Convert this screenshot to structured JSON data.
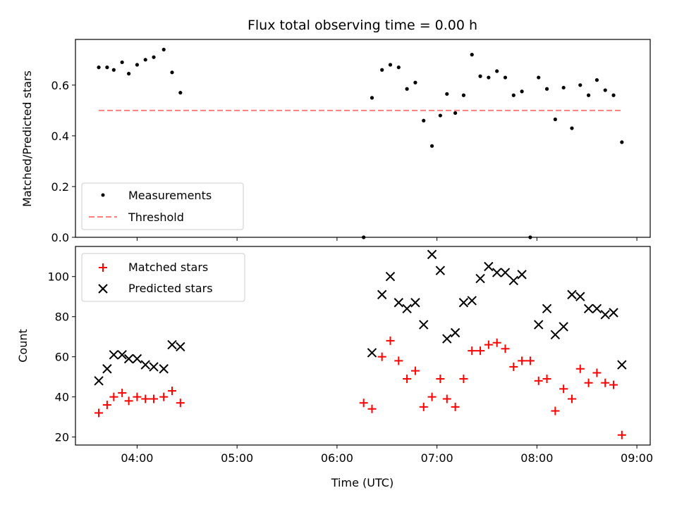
{
  "chart_data": [
    {
      "type": "scatter",
      "title": "Flux total observing time = 0.00 h",
      "ylabel": "Matched/Predicted stars",
      "xlabel": "",
      "xlim": [
        "03:23",
        "09:08"
      ],
      "ylim": [
        0,
        0.78
      ],
      "yticks": [
        "0.0",
        "0.2",
        "0.4",
        "0.6"
      ],
      "ytick_values": [
        0.0,
        0.2,
        0.4,
        0.6
      ],
      "grid": false,
      "legend": "lower-left",
      "series": [
        {
          "name": "Measurements",
          "marker": "dot",
          "color": "#000000",
          "points": [
            [
              "03:37",
              0.67
            ],
            [
              "03:42",
              0.67
            ],
            [
              "03:46",
              0.66
            ],
            [
              "03:51",
              0.69
            ],
            [
              "03:55",
              0.645
            ],
            [
              "04:00",
              0.68
            ],
            [
              "04:05",
              0.7
            ],
            [
              "04:10",
              0.71
            ],
            [
              "04:16",
              0.74
            ],
            [
              "04:21",
              0.65
            ],
            [
              "04:26",
              0.57
            ],
            [
              "06:16",
              0.0
            ],
            [
              "06:21",
              0.55
            ],
            [
              "06:27",
              0.66
            ],
            [
              "06:32",
              0.68
            ],
            [
              "06:37",
              0.67
            ],
            [
              "06:42",
              0.585
            ],
            [
              "06:47",
              0.61
            ],
            [
              "06:52",
              0.46
            ],
            [
              "06:57",
              0.36
            ],
            [
              "07:02",
              0.48
            ],
            [
              "07:06",
              0.565
            ],
            [
              "07:11",
              0.49
            ],
            [
              "07:16",
              0.56
            ],
            [
              "07:21",
              0.72
            ],
            [
              "07:26",
              0.635
            ],
            [
              "07:31",
              0.63
            ],
            [
              "07:36",
              0.655
            ],
            [
              "07:41",
              0.63
            ],
            [
              "07:46",
              0.56
            ],
            [
              "07:51",
              0.575
            ],
            [
              "07:56",
              0.0
            ],
            [
              "08:01",
              0.63
            ],
            [
              "08:06",
              0.585
            ],
            [
              "08:11",
              0.465
            ],
            [
              "08:16",
              0.59
            ],
            [
              "08:21",
              0.43
            ],
            [
              "08:26",
              0.6
            ],
            [
              "08:31",
              0.56
            ],
            [
              "08:36",
              0.62
            ],
            [
              "08:41",
              0.58
            ],
            [
              "08:46",
              0.56
            ],
            [
              "08:51",
              0.375
            ]
          ]
        },
        {
          "name": "Threshold",
          "style": "dashed-line",
          "color": "#ff7f7f",
          "points": [
            [
              "03:37",
              0.5
            ],
            [
              "08:51",
              0.5
            ]
          ]
        }
      ]
    },
    {
      "type": "scatter",
      "title": "",
      "xlabel": "Time (UTC)",
      "ylabel": "Count",
      "xlim": [
        "03:23",
        "09:08"
      ],
      "ylim": [
        16,
        115
      ],
      "xticks": [
        "04:00",
        "05:00",
        "06:00",
        "07:00",
        "08:00",
        "09:00"
      ],
      "yticks": [
        "20",
        "40",
        "60",
        "80",
        "100"
      ],
      "ytick_values": [
        20,
        40,
        60,
        80,
        100
      ],
      "grid": false,
      "legend": "upper-left",
      "series": [
        {
          "name": "Matched stars",
          "marker": "plus",
          "color": "#ff0000",
          "points": [
            [
              "03:37",
              32
            ],
            [
              "03:42",
              36
            ],
            [
              "03:46",
              40
            ],
            [
              "03:51",
              42
            ],
            [
              "03:55",
              38
            ],
            [
              "04:00",
              40
            ],
            [
              "04:05",
              39
            ],
            [
              "04:10",
              39
            ],
            [
              "04:16",
              40
            ],
            [
              "04:21",
              43
            ],
            [
              "04:26",
              37
            ],
            [
              "06:16",
              37
            ],
            [
              "06:21",
              34
            ],
            [
              "06:27",
              60
            ],
            [
              "06:32",
              68
            ],
            [
              "06:37",
              58
            ],
            [
              "06:42",
              49
            ],
            [
              "06:47",
              53
            ],
            [
              "06:52",
              35
            ],
            [
              "06:57",
              40
            ],
            [
              "07:02",
              49
            ],
            [
              "07:06",
              39
            ],
            [
              "07:11",
              35
            ],
            [
              "07:16",
              49
            ],
            [
              "07:21",
              63
            ],
            [
              "07:26",
              63
            ],
            [
              "07:31",
              66
            ],
            [
              "07:36",
              67
            ],
            [
              "07:41",
              64
            ],
            [
              "07:46",
              55
            ],
            [
              "07:51",
              58
            ],
            [
              "07:56",
              58
            ],
            [
              "08:01",
              48
            ],
            [
              "08:06",
              49
            ],
            [
              "08:11",
              33
            ],
            [
              "08:16",
              44
            ],
            [
              "08:21",
              39
            ],
            [
              "08:26",
              54
            ],
            [
              "08:31",
              47
            ],
            [
              "08:36",
              52
            ],
            [
              "08:41",
              47
            ],
            [
              "08:46",
              46
            ],
            [
              "08:51",
              21
            ]
          ]
        },
        {
          "name": "Predicted stars",
          "marker": "x",
          "color": "#000000",
          "points": [
            [
              "03:37",
              48
            ],
            [
              "03:42",
              54
            ],
            [
              "03:46",
              61
            ],
            [
              "03:51",
              61
            ],
            [
              "03:55",
              59
            ],
            [
              "04:00",
              59
            ],
            [
              "04:05",
              56
            ],
            [
              "04:10",
              55
            ],
            [
              "04:16",
              54
            ],
            [
              "04:21",
              66
            ],
            [
              "04:26",
              65
            ],
            [
              "06:21",
              62
            ],
            [
              "06:27",
              91
            ],
            [
              "06:32",
              100
            ],
            [
              "06:37",
              87
            ],
            [
              "06:42",
              84
            ],
            [
              "06:47",
              87
            ],
            [
              "06:52",
              76
            ],
            [
              "06:57",
              111
            ],
            [
              "07:02",
              103
            ],
            [
              "07:06",
              69
            ],
            [
              "07:11",
              72
            ],
            [
              "07:16",
              87
            ],
            [
              "07:21",
              88
            ],
            [
              "07:26",
              99
            ],
            [
              "07:31",
              105
            ],
            [
              "07:36",
              102
            ],
            [
              "07:41",
              102
            ],
            [
              "07:46",
              98
            ],
            [
              "07:51",
              101
            ],
            [
              "08:01",
              76
            ],
            [
              "08:06",
              84
            ],
            [
              "08:11",
              71
            ],
            [
              "08:16",
              75
            ],
            [
              "08:21",
              91
            ],
            [
              "08:26",
              90
            ],
            [
              "08:31",
              84
            ],
            [
              "08:36",
              84
            ],
            [
              "08:41",
              81
            ],
            [
              "08:46",
              82
            ],
            [
              "08:51",
              56
            ]
          ]
        }
      ]
    }
  ]
}
